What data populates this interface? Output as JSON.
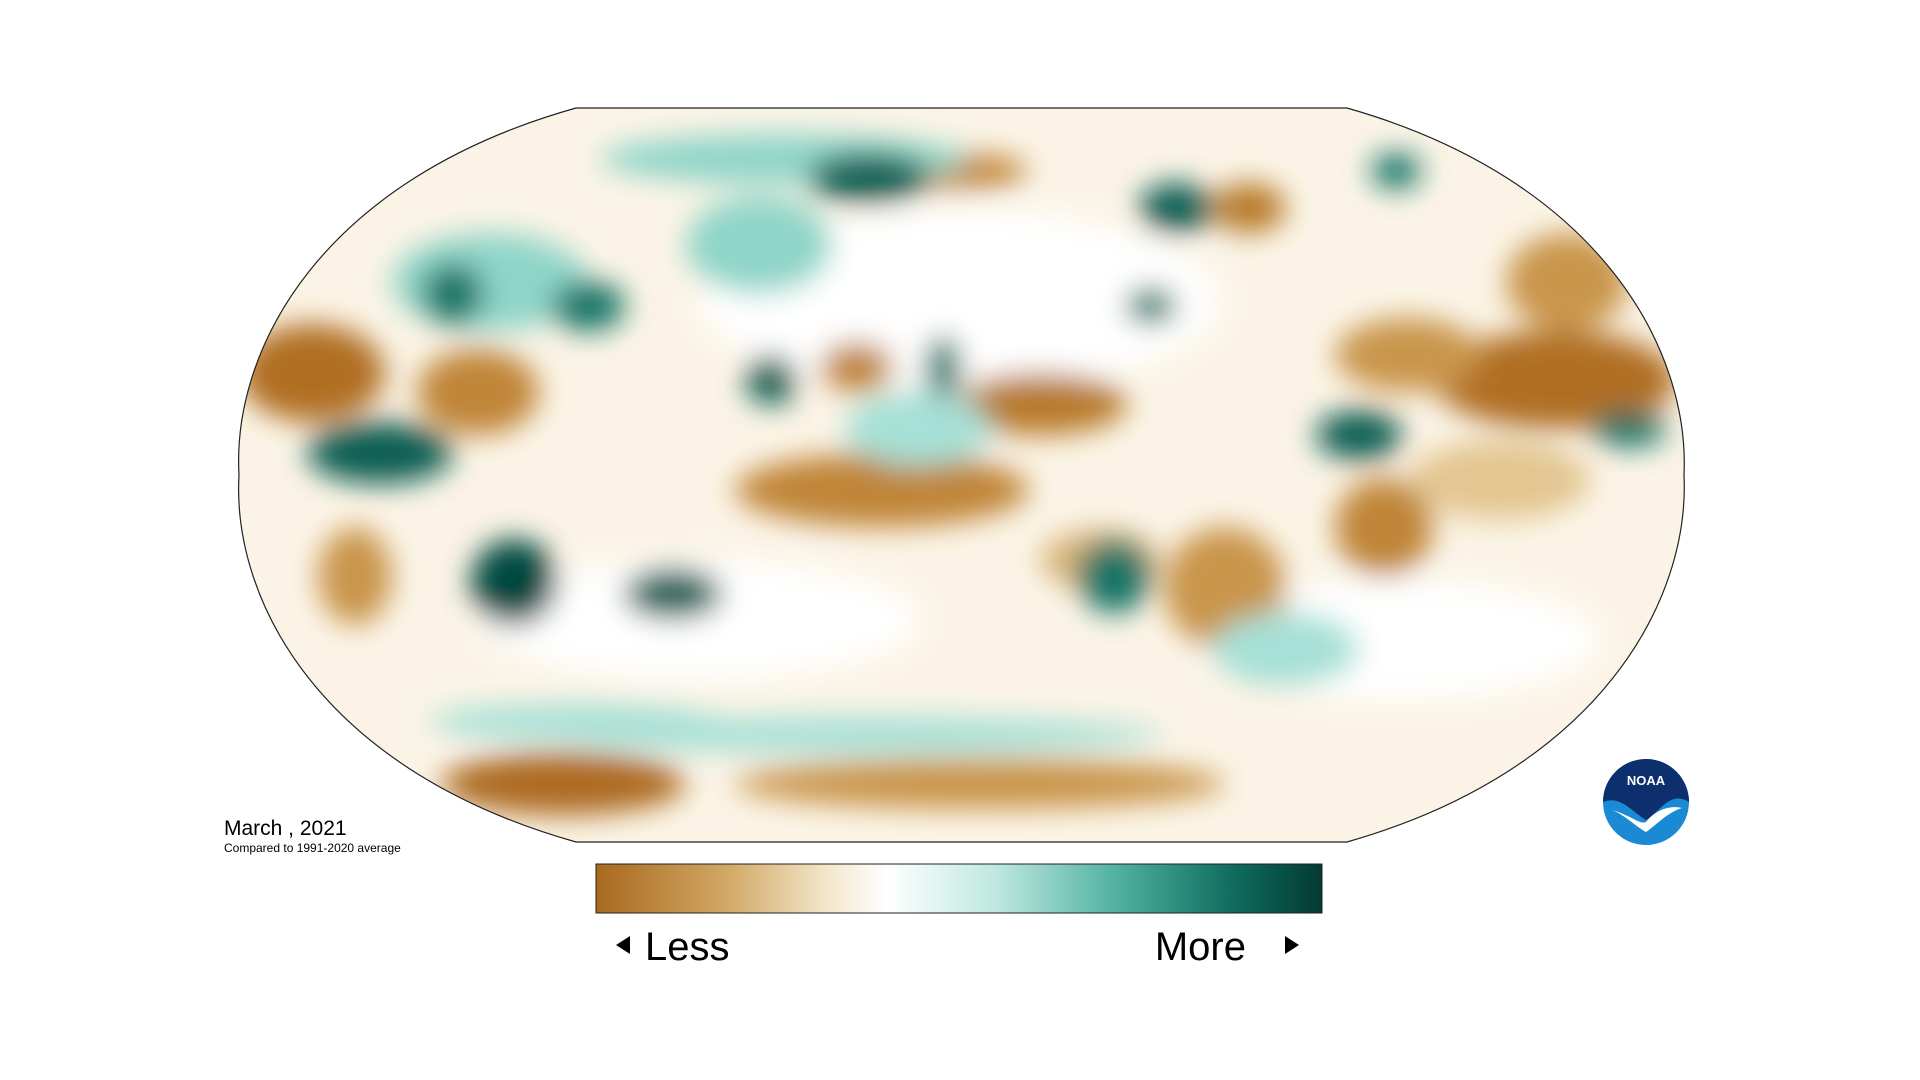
{
  "title": "March , 2021",
  "subtitle": "Compared to 1991-2020 average",
  "legend": {
    "low": "Less",
    "high": "More"
  },
  "logo": "NOAA"
}
